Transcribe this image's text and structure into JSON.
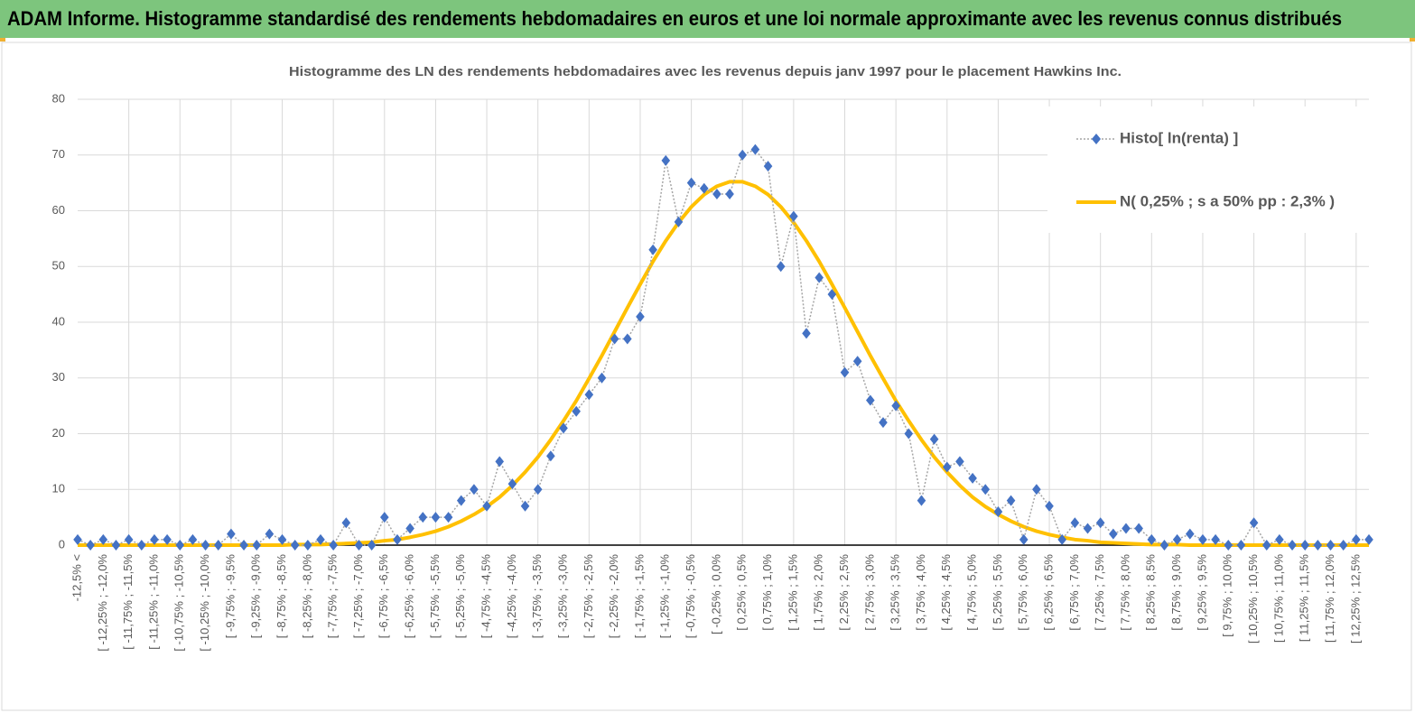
{
  "header": {
    "title": "ADAM Informe. Histogramme standardisé des rendements hebdomadaires en euros et une loi normale approximante avec les revenus connus distribués"
  },
  "chart_data": {
    "type": "line",
    "title": "Histogramme des LN des rendements hebdomadaires avec les revenus depuis janv 1997 pour le placement Hawkins Inc.",
    "categories": [
      "-12,5% <",
      null,
      "[ -12,25% ; -12,0%",
      null,
      "[ -11,75% ; -11,5%",
      null,
      "[ -11,25% ; -11,0%",
      null,
      "[ -10,75% ; -10,5%",
      null,
      "[ -10,25% ; -10,0%",
      null,
      "[ -9,75% ; -9,5%",
      null,
      "[ -9,25% ; -9,0%",
      null,
      "[ -8,75% ; -8,5%",
      null,
      "[ -8,25% ; -8,0%",
      null,
      "[ -7,75% ; -7,5%",
      null,
      "[ -7,25% ; -7,0%",
      null,
      "[ -6,75% ; -6,5%",
      null,
      "[ -6,25% ; -6,0%",
      null,
      "[ -5,75% ; -5,5%",
      null,
      "[ -5,25% ; -5,0%",
      null,
      "[ -4,75% ; -4,5%",
      null,
      "[ -4,25% ; -4,0%",
      null,
      "[ -3,75% ; -3,5%",
      null,
      "[ -3,25% ; -3,0%",
      null,
      "[ -2,75% ; -2,5%",
      null,
      "[ -2,25% ; -2,0%",
      null,
      "[ -1,75% ; -1,5%",
      null,
      "[ -1,25% ; -1,0%",
      null,
      "[ -0,75% ; -0,5%",
      null,
      "[ -0,25% ; 0,0%",
      null,
      "[ 0,25% ; 0,5%",
      null,
      "[ 0,75% ; 1,0%",
      null,
      "[ 1,25% ; 1,5%",
      null,
      "[ 1,75% ; 2,0%",
      null,
      "[ 2,25% ; 2,5%",
      null,
      "[ 2,75% ; 3,0%",
      null,
      "[ 3,25% ; 3,5%",
      null,
      "[ 3,75% ; 4,0%",
      null,
      "[ 4,25% ; 4,5%",
      null,
      "[ 4,75% ; 5,0%",
      null,
      "[ 5,25% ; 5,5%",
      null,
      "[ 5,75% ; 6,0%",
      null,
      "[ 6,25% ; 6,5%",
      null,
      "[ 6,75% ; 7,0%",
      null,
      "[ 7,25% ; 7,5%",
      null,
      "[ 7,75% ; 8,0%",
      null,
      "[ 8,25% ; 8,5%",
      null,
      "[ 8,75% ; 9,0%",
      null,
      "[ 9,25% ; 9,5%",
      null,
      "[ 9,75% ; 10,0%",
      null,
      "[ 10,25% ; 10,5%",
      null,
      "[ 10,75% ; 11,0%",
      null,
      "[ 11,25% ; 11,5%",
      null,
      "[ 11,75% ; 12,0%",
      null,
      "[ 12,25% ; 12,5%",
      null
    ],
    "series": [
      {
        "name": "Histo[ ln(renta) ]",
        "color": "#4472c4",
        "line_color": "#a5a5a5",
        "values": [
          1,
          0,
          1,
          0,
          1,
          0,
          1,
          1,
          0,
          1,
          0,
          0,
          2,
          0,
          0,
          2,
          1,
          0,
          0,
          1,
          0,
          4,
          0,
          0,
          5,
          1,
          3,
          5,
          5,
          5,
          8,
          10,
          7,
          15,
          11,
          7,
          10,
          16,
          21,
          24,
          27,
          30,
          37,
          37,
          41,
          53,
          69,
          58,
          65,
          64,
          63,
          63,
          70,
          71,
          68,
          50,
          59,
          38,
          48,
          45,
          31,
          33,
          26,
          22,
          25,
          20,
          8,
          19,
          14,
          15,
          12,
          10,
          6,
          8,
          1,
          10,
          7,
          1,
          4,
          3,
          4,
          2,
          3,
          3,
          1,
          0,
          1,
          2,
          1,
          1,
          0,
          0,
          4,
          0,
          1,
          0,
          0,
          0,
          0,
          0,
          1,
          1
        ]
      },
      {
        "name": "N( 0,25% ; s a 50% pp : 2,3% )",
        "color": "#ffc000",
        "values": [
          0,
          0,
          0,
          0,
          0,
          0,
          0,
          0,
          0,
          0,
          0,
          0,
          0,
          0,
          0,
          0,
          0,
          0.1,
          0.1,
          0.1,
          0.2,
          0.3,
          0.4,
          0.5,
          0.8,
          1.0,
          1.4,
          1.9,
          2.5,
          3.3,
          4.3,
          5.5,
          6.9,
          8.6,
          10.7,
          13.1,
          15.8,
          18.9,
          22.3,
          25.9,
          29.9,
          34.0,
          38.3,
          42.6,
          46.8,
          50.9,
          54.6,
          57.9,
          60.7,
          62.9,
          64.4,
          65.2,
          65.2,
          64.4,
          62.9,
          60.7,
          57.9,
          54.6,
          50.9,
          46.8,
          42.6,
          38.3,
          34.0,
          29.9,
          25.9,
          22.3,
          18.9,
          15.8,
          13.1,
          10.7,
          8.6,
          6.9,
          5.5,
          4.3,
          3.3,
          2.5,
          1.9,
          1.4,
          1.0,
          0.8,
          0.5,
          0.4,
          0.3,
          0.2,
          0.1,
          0.1,
          0.1,
          0,
          0,
          0,
          0,
          0,
          0,
          0,
          0,
          0,
          0,
          0,
          0,
          0,
          0,
          0
        ]
      }
    ],
    "ylim": [
      0,
      80
    ],
    "yticks": [
      0,
      10,
      20,
      30,
      40,
      50,
      60,
      70,
      80
    ],
    "grid": true,
    "legend": "top-right"
  }
}
